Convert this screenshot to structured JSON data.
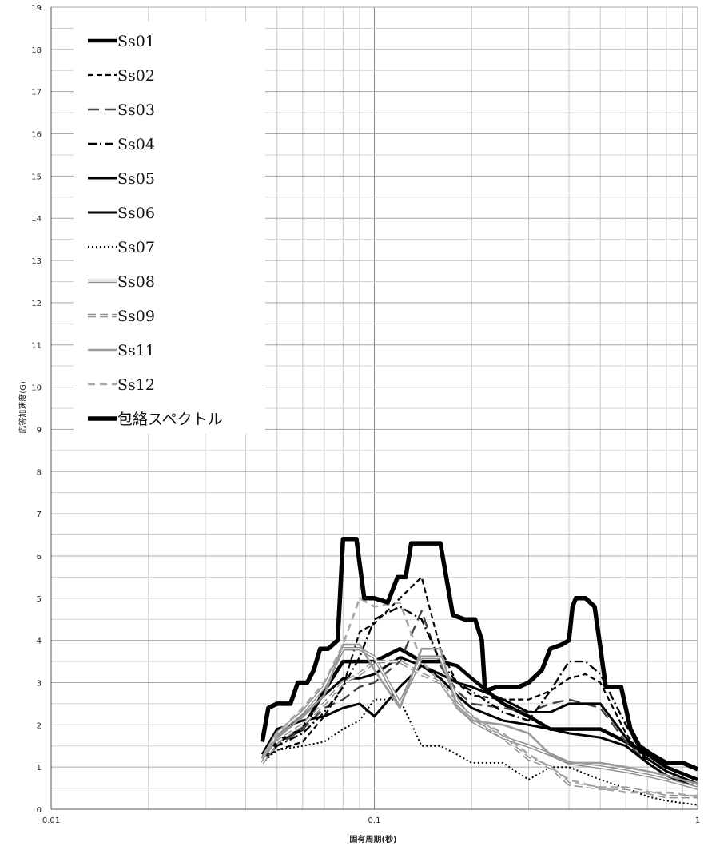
{
  "chart_data": {
    "type": "line",
    "title": "",
    "xlabel": "固有周期(秒)",
    "ylabel": "応答加速度(G)",
    "x_scale": "log",
    "xlim": [
      0.01,
      1
    ],
    "ylim": [
      0,
      19
    ],
    "x_ticks": [
      "0.01",
      "0.1",
      "1"
    ],
    "y_ticks": [
      "0",
      "1",
      "2",
      "3",
      "4",
      "5",
      "6",
      "7",
      "8",
      "9",
      "10",
      "11",
      "12",
      "13",
      "14",
      "15",
      "16",
      "17",
      "18",
      "19"
    ],
    "grid": true,
    "legend_position": "top-left",
    "series": [
      {
        "name": "Ss01",
        "style": "solid-thick",
        "color": "#000000",
        "x": [
          0.045,
          0.05,
          0.06,
          0.07,
          0.08,
          0.09,
          0.1,
          0.12,
          0.14,
          0.16,
          0.18,
          0.2,
          0.25,
          0.3,
          0.35,
          0.4,
          0.5,
          0.6,
          0.7,
          0.8,
          1.0
        ],
        "y": [
          1.2,
          1.6,
          1.9,
          2.8,
          3.5,
          3.5,
          3.5,
          3.8,
          3.5,
          3.5,
          3.4,
          3.1,
          2.5,
          2.2,
          1.9,
          1.9,
          1.9,
          1.6,
          1.3,
          1.0,
          0.7
        ]
      },
      {
        "name": "Ss02",
        "style": "dashed",
        "color": "#000000",
        "x": [
          0.045,
          0.05,
          0.06,
          0.07,
          0.08,
          0.09,
          0.1,
          0.12,
          0.14,
          0.16,
          0.18,
          0.2,
          0.25,
          0.3,
          0.35,
          0.4,
          0.45,
          0.5,
          0.6,
          0.7,
          0.8,
          1.0
        ],
        "y": [
          1.2,
          1.4,
          1.6,
          2.2,
          2.9,
          4.2,
          4.4,
          5.0,
          5.5,
          3.8,
          3.0,
          2.7,
          2.6,
          2.6,
          2.8,
          3.1,
          3.2,
          3.0,
          1.8,
          1.1,
          0.8,
          0.5
        ]
      },
      {
        "name": "Ss03",
        "style": "long-dash",
        "color": "#555555",
        "x": [
          0.045,
          0.05,
          0.06,
          0.07,
          0.08,
          0.09,
          0.1,
          0.12,
          0.14,
          0.16,
          0.18,
          0.2,
          0.25,
          0.3,
          0.35,
          0.4,
          0.5,
          0.6,
          0.7,
          0.8,
          1.0
        ],
        "y": [
          1.1,
          1.5,
          1.9,
          2.4,
          2.6,
          2.9,
          3.0,
          3.5,
          4.7,
          3.4,
          2.8,
          2.5,
          2.4,
          2.3,
          2.5,
          2.6,
          2.4,
          1.6,
          1.1,
          0.8,
          0.5
        ]
      },
      {
        "name": "Ss04",
        "style": "dash-dot",
        "color": "#000000",
        "x": [
          0.045,
          0.05,
          0.06,
          0.07,
          0.08,
          0.09,
          0.1,
          0.12,
          0.14,
          0.16,
          0.18,
          0.2,
          0.25,
          0.3,
          0.35,
          0.4,
          0.45,
          0.5,
          0.6,
          0.7,
          0.8,
          1.0
        ],
        "y": [
          1.2,
          1.5,
          1.8,
          2.3,
          2.9,
          3.6,
          4.5,
          4.8,
          4.5,
          3.5,
          3.0,
          2.8,
          2.3,
          2.1,
          2.8,
          3.5,
          3.5,
          3.2,
          2.0,
          1.1,
          0.8,
          0.6
        ]
      },
      {
        "name": "Ss05",
        "style": "solid-medium",
        "color": "#000000",
        "x": [
          0.045,
          0.05,
          0.06,
          0.07,
          0.08,
          0.09,
          0.1,
          0.12,
          0.14,
          0.16,
          0.18,
          0.2,
          0.25,
          0.3,
          0.35,
          0.4,
          0.5,
          0.6,
          0.7,
          0.8,
          1.0
        ],
        "y": [
          1.3,
          1.7,
          2.2,
          2.7,
          3.1,
          3.1,
          3.2,
          3.6,
          3.4,
          3.2,
          3.0,
          2.9,
          2.6,
          2.3,
          2.3,
          2.5,
          2.5,
          1.7,
          1.2,
          0.9,
          0.6
        ]
      },
      {
        "name": "Ss06",
        "style": "solid-medium",
        "color": "#000000",
        "x": [
          0.045,
          0.05,
          0.06,
          0.07,
          0.08,
          0.09,
          0.1,
          0.12,
          0.14,
          0.16,
          0.18,
          0.2,
          0.25,
          0.3,
          0.35,
          0.4,
          0.5,
          0.6,
          0.7,
          0.8,
          1.0
        ],
        "y": [
          1.3,
          1.9,
          2.1,
          2.2,
          2.4,
          2.5,
          2.2,
          2.9,
          3.4,
          3.1,
          2.7,
          2.4,
          2.1,
          2.0,
          1.9,
          1.8,
          1.7,
          1.5,
          1.1,
          0.8,
          0.5
        ]
      },
      {
        "name": "Ss07",
        "style": "dotted",
        "color": "#000000",
        "x": [
          0.045,
          0.05,
          0.06,
          0.07,
          0.08,
          0.09,
          0.1,
          0.12,
          0.14,
          0.16,
          0.18,
          0.2,
          0.25,
          0.3,
          0.35,
          0.4,
          0.5,
          0.6,
          0.7,
          0.8,
          1.0
        ],
        "y": [
          1.1,
          1.4,
          1.5,
          1.6,
          1.9,
          2.1,
          2.6,
          2.6,
          1.5,
          1.5,
          1.3,
          1.1,
          1.1,
          0.7,
          1.0,
          1.0,
          0.7,
          0.5,
          0.3,
          0.2,
          0.1
        ]
      },
      {
        "name": "Ss08",
        "style": "double-gray",
        "color": "#999999",
        "x": [
          0.045,
          0.05,
          0.06,
          0.07,
          0.08,
          0.09,
          0.1,
          0.12,
          0.14,
          0.16,
          0.18,
          0.2,
          0.25,
          0.3,
          0.35,
          0.4,
          0.5,
          0.6,
          0.7,
          0.8,
          1.0
        ],
        "y": [
          1.2,
          1.8,
          2.3,
          2.9,
          3.8,
          3.8,
          3.6,
          2.5,
          3.6,
          3.6,
          2.6,
          2.1,
          1.7,
          1.5,
          1.3,
          1.1,
          1.0,
          0.9,
          0.8,
          0.7,
          0.5
        ]
      },
      {
        "name": "Ss09",
        "style": "double-dash-gray",
        "color": "#999999",
        "x": [
          0.045,
          0.05,
          0.06,
          0.07,
          0.08,
          0.09,
          0.1,
          0.12,
          0.14,
          0.16,
          0.18,
          0.2,
          0.25,
          0.3,
          0.35,
          0.4,
          0.5,
          0.6,
          0.7,
          0.8,
          1.0
        ],
        "y": [
          1.1,
          1.6,
          2.0,
          2.5,
          3.0,
          3.2,
          3.5,
          3.5,
          3.2,
          3.0,
          2.5,
          2.2,
          1.7,
          1.2,
          1.0,
          0.6,
          0.5,
          0.5,
          0.4,
          0.3,
          0.3
        ]
      },
      {
        "name": "Ss11",
        "style": "solid-gray",
        "color": "#999999",
        "x": [
          0.045,
          0.05,
          0.06,
          0.07,
          0.08,
          0.09,
          0.1,
          0.12,
          0.14,
          0.16,
          0.18,
          0.2,
          0.25,
          0.3,
          0.35,
          0.4,
          0.5,
          0.6,
          0.7,
          0.8,
          1.0
        ],
        "y": [
          1.2,
          1.7,
          2.2,
          2.7,
          3.9,
          3.9,
          3.3,
          2.4,
          3.8,
          3.8,
          2.4,
          2.1,
          2.0,
          1.8,
          1.3,
          1.1,
          1.1,
          1.0,
          0.9,
          0.8,
          0.6
        ]
      },
      {
        "name": "Ss12",
        "style": "dashed-gray",
        "color": "#aaaaaa",
        "x": [
          0.045,
          0.05,
          0.06,
          0.07,
          0.08,
          0.09,
          0.1,
          0.12,
          0.14,
          0.16,
          0.18,
          0.2,
          0.25,
          0.3,
          0.35,
          0.4,
          0.5,
          0.6,
          0.7,
          0.8,
          1.0
        ],
        "y": [
          1.2,
          1.8,
          2.4,
          3.0,
          3.9,
          5.0,
          4.8,
          4.9,
          3.5,
          3.0,
          2.4,
          2.2,
          1.8,
          1.3,
          1.0,
          0.7,
          0.5,
          0.4,
          0.4,
          0.4,
          0.3
        ]
      },
      {
        "name": "包絡スペクトル",
        "style": "solid-extra-thick",
        "color": "#000000",
        "x": [
          0.045,
          0.047,
          0.05,
          0.055,
          0.058,
          0.062,
          0.065,
          0.068,
          0.072,
          0.077,
          0.08,
          0.088,
          0.093,
          0.098,
          0.1,
          0.11,
          0.118,
          0.125,
          0.13,
          0.16,
          0.175,
          0.19,
          0.205,
          0.215,
          0.22,
          0.24,
          0.28,
          0.3,
          0.33,
          0.35,
          0.38,
          0.4,
          0.41,
          0.42,
          0.45,
          0.48,
          0.52,
          0.58,
          0.62,
          0.66,
          0.72,
          0.8,
          0.9,
          1.0
        ],
        "y": [
          1.6,
          2.4,
          2.5,
          2.5,
          3.0,
          3.0,
          3.3,
          3.8,
          3.8,
          4.0,
          6.4,
          6.4,
          5.0,
          5.0,
          5.0,
          4.9,
          5.5,
          5.5,
          6.3,
          6.3,
          4.6,
          4.5,
          4.5,
          4.0,
          2.8,
          2.9,
          2.9,
          3.0,
          3.3,
          3.8,
          3.9,
          4.0,
          4.8,
          5.0,
          5.0,
          4.8,
          2.9,
          2.9,
          1.9,
          1.5,
          1.3,
          1.1,
          1.1,
          0.95
        ]
      }
    ]
  }
}
